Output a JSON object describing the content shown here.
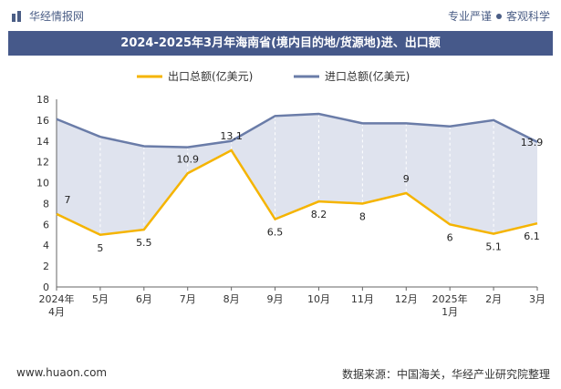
{
  "header": {
    "brand": "华经情报网",
    "tagline_left": "专业严谨",
    "tagline_right": "客观科学"
  },
  "footer": {
    "website": "www.huaon.com",
    "source": "数据来源：中国海关，华经产业研究院整理"
  },
  "colors": {
    "export": "#f5b400",
    "import": "#6a7ca8",
    "fill": "#dfe3ee",
    "title_bg": "#46598a"
  },
  "chart_data": {
    "type": "line",
    "title": "2024-2025年3月年海南省(境内目的地/货源地)进、出口额",
    "categories": [
      "2024年4月",
      "5月",
      "6月",
      "7月",
      "8月",
      "9月",
      "10月",
      "11月",
      "12月",
      "2025年1月",
      "2月",
      "3月"
    ],
    "series": [
      {
        "name": "出口总额(亿美元)",
        "values": [
          7,
          5,
          5.5,
          10.9,
          13.1,
          6.5,
          8.2,
          8,
          9,
          6,
          5.1,
          6.1
        ]
      },
      {
        "name": "进口总额(亿美元)",
        "values": [
          16.1,
          14.4,
          13.5,
          13.4,
          14.0,
          16.4,
          16.6,
          15.7,
          15.7,
          15.4,
          16.0,
          13.9
        ]
      }
    ],
    "data_labels_shown": {
      "export": [
        "7",
        "5",
        "5.5",
        "10.9",
        "13.1",
        "6.5",
        "8.2",
        "8",
        "9",
        "6",
        "5.1",
        "6.1"
      ],
      "import_last": "13.9"
    },
    "yticks": [
      "0",
      "2",
      "4",
      "6",
      "8",
      "10",
      "12",
      "14",
      "16",
      "18"
    ],
    "ylim": [
      0,
      18
    ],
    "grid": false,
    "legend": "top-center"
  }
}
